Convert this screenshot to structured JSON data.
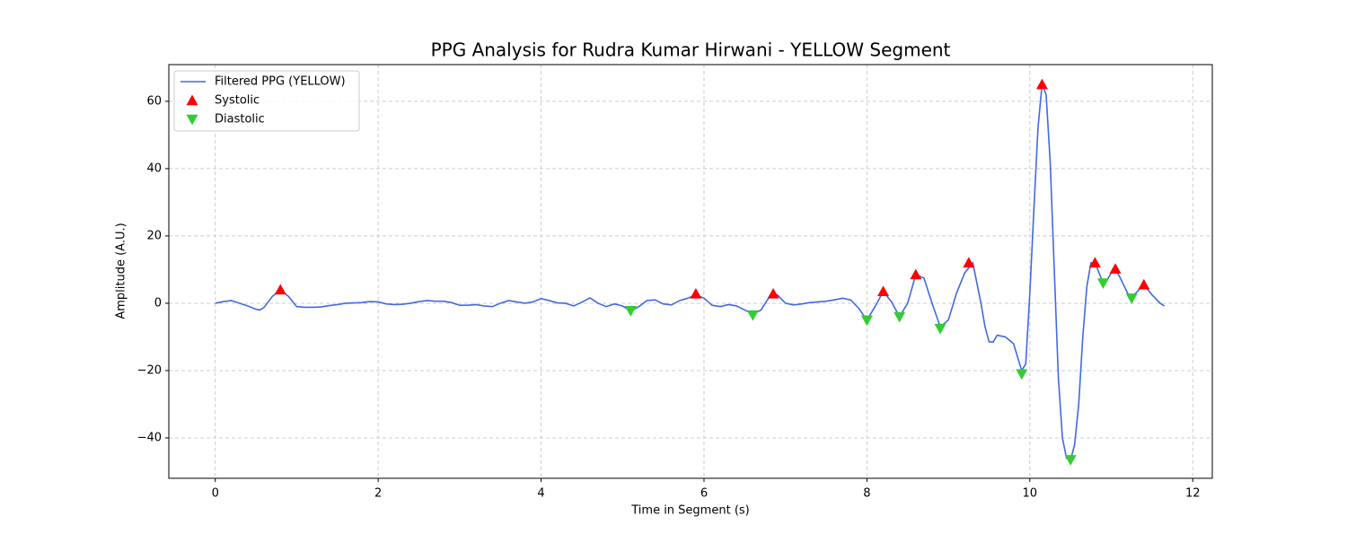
{
  "chart_data": {
    "type": "line",
    "title": "PPG Analysis for Rudra Kumar Hirwani - YELLOW Segment",
    "x_label": "Time in Segment (s)",
    "y_label": "Amplitude (A.U.)",
    "xlim": [
      -0.57,
      12.24
    ],
    "ylim": [
      -52,
      70.9
    ],
    "xticks": [
      0,
      2,
      4,
      6,
      8,
      10,
      12
    ],
    "yticks": [
      {
        "value": -40,
        "label": "−40"
      },
      {
        "value": -20,
        "label": "−20"
      },
      0,
      20,
      40,
      60
    ],
    "grid": true,
    "legend": "upper-left",
    "series": [
      {
        "name": "Filtered PPG (YELLOW)",
        "color": "#4169e1",
        "marker": "none",
        "x": [
          0,
          0.1,
          0.2,
          0.3,
          0.4,
          0.5,
          0.55,
          0.6,
          0.7,
          0.8,
          0.9,
          1.0,
          1.1,
          1.2,
          1.3,
          1.4,
          1.5,
          1.6,
          1.7,
          1.8,
          1.9,
          2.0,
          2.1,
          2.2,
          2.3,
          2.4,
          2.5,
          2.6,
          2.7,
          2.8,
          2.9,
          3.0,
          3.1,
          3.2,
          3.3,
          3.4,
          3.5,
          3.6,
          3.7,
          3.8,
          3.9,
          4.0,
          4.1,
          4.2,
          4.3,
          4.4,
          4.5,
          4.6,
          4.7,
          4.8,
          4.9,
          5.0,
          5.1,
          5.2,
          5.3,
          5.4,
          5.5,
          5.6,
          5.7,
          5.8,
          5.9,
          6.0,
          6.1,
          6.2,
          6.3,
          6.4,
          6.5,
          6.6,
          6.7,
          6.8,
          6.9,
          7.0,
          7.1,
          7.2,
          7.3,
          7.4,
          7.5,
          7.6,
          7.7,
          7.8,
          7.9,
          8.0,
          8.1,
          8.2,
          8.3,
          8.4,
          8.5,
          8.6,
          8.7,
          8.8,
          8.9,
          9.0,
          9.1,
          9.2,
          9.3,
          9.4,
          9.45,
          9.5,
          9.55,
          9.6,
          9.7,
          9.8,
          9.9,
          9.95,
          10.0,
          10.05,
          10.1,
          10.15,
          10.2,
          10.25,
          10.3,
          10.35,
          10.4,
          10.45,
          10.5,
          10.55,
          10.6,
          10.65,
          10.7,
          10.75,
          10.8,
          10.85,
          10.9,
          10.95,
          11.0,
          11.05,
          11.1,
          11.2,
          11.25,
          11.3,
          11.4,
          11.5,
          11.6,
          11.65
        ],
        "values": [
          0,
          0.5,
          0.8,
          0,
          -0.8,
          -1.8,
          -2,
          -1.2,
          2,
          4,
          2,
          -1,
          -1.2,
          -1.2,
          -1.1,
          -0.7,
          -0.4,
          0,
          0.1,
          0.2,
          0.5,
          0.4,
          -0.2,
          -0.4,
          -0.3,
          0,
          0.5,
          0.8,
          0.6,
          0.6,
          0.2,
          -0.6,
          -0.6,
          -0.4,
          -0.8,
          -1,
          0,
          0.8,
          0.4,
          0,
          0.4,
          1.4,
          0.8,
          0.1,
          0,
          -0.8,
          0.3,
          1.6,
          0,
          -1,
          -0.2,
          -0.8,
          -2.3,
          -1,
          0.8,
          1,
          -0.2,
          -0.5,
          0.8,
          1.5,
          2.5,
          1.5,
          -0.6,
          -1,
          -0.4,
          -0.8,
          -2,
          -3.2,
          -2,
          1.8,
          2.5,
          0,
          -0.5,
          -0.2,
          0.2,
          0.4,
          0.6,
          1,
          1.5,
          1,
          -1.5,
          -5,
          -1,
          3.5,
          0.5,
          -4,
          0,
          8.5,
          7.5,
          0,
          -7,
          -5,
          3,
          9,
          12,
          0,
          -7,
          -11.5,
          -11.5,
          -9.5,
          -10,
          -12,
          -20,
          -18,
          3,
          28,
          52,
          65,
          62,
          42,
          10,
          -22,
          -40,
          -46,
          -46.5,
          -42,
          -30,
          -10,
          5,
          12,
          12,
          9,
          6,
          7,
          9,
          10,
          8,
          3,
          1.8,
          3,
          5.5,
          2.5,
          0,
          -0.8
        ]
      },
      {
        "name": "Systolic",
        "color": "#ff0000",
        "marker": "triangle-up",
        "x": [
          0.8,
          5.9,
          6.85,
          8.2,
          8.6,
          9.25,
          10.15,
          10.8,
          11.05,
          11.4
        ],
        "values": [
          4,
          2.8,
          2.8,
          3.5,
          8.5,
          12,
          65,
          12,
          10.2,
          5.5
        ]
      },
      {
        "name": "Diastolic",
        "color": "#32cd32",
        "marker": "triangle-down",
        "x": [
          5.1,
          6.6,
          8.0,
          8.4,
          8.9,
          9.9,
          10.5,
          10.9,
          11.25
        ],
        "values": [
          -2.2,
          -3.5,
          -5,
          -4,
          -7.5,
          -21,
          -46.5,
          6,
          1.5
        ]
      }
    ]
  }
}
